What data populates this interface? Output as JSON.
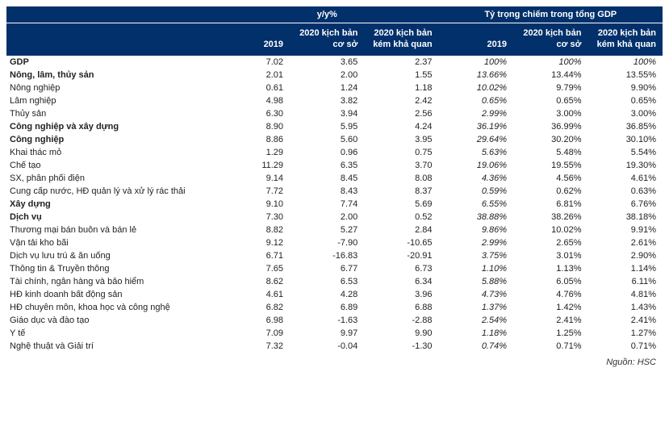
{
  "header": {
    "group_left": "y/y%",
    "group_right": "Tỷ trọng chiếm trong tổng GDP",
    "cols": [
      "2019",
      "2020 kịch bản cơ sở",
      "2020 kịch bản kém khả quan",
      "2019",
      "2020 kịch bản cơ sở",
      "2020 kịch bản kém khả quan"
    ]
  },
  "rows": [
    {
      "level": 0,
      "label": "GDP",
      "bold": true,
      "yoy": [
        "7.02",
        "3.65",
        "2.37"
      ],
      "share": [
        "100%",
        "100%",
        "100%"
      ],
      "share_italic": true
    },
    {
      "level": 1,
      "label": "Nông, lâm, thủy sản",
      "bold": true,
      "yoy": [
        "2.01",
        "2.00",
        "1.55"
      ],
      "share": [
        "13.66%",
        "13.44%",
        "13.55%"
      ],
      "first_share_italic": true
    },
    {
      "level": 2,
      "label": "Nông nghiệp",
      "yoy": [
        "0.61",
        "1.24",
        "1.18"
      ],
      "share": [
        "10.02%",
        "9.79%",
        "9.90%"
      ],
      "first_share_italic": true
    },
    {
      "level": 2,
      "label": "Lâm nghiệp",
      "yoy": [
        "4.98",
        "3.82",
        "2.42"
      ],
      "share": [
        "0.65%",
        "0.65%",
        "0.65%"
      ],
      "first_share_italic": true
    },
    {
      "level": 2,
      "label": "Thủy sản",
      "yoy": [
        "6.30",
        "3.94",
        "2.56"
      ],
      "share": [
        "2.99%",
        "3.00%",
        "3.00%"
      ],
      "first_share_italic": true
    },
    {
      "level": 1,
      "label": "Công nghiệp và xây dựng",
      "bold": true,
      "yoy": [
        "8.90",
        "5.95",
        "4.24"
      ],
      "share": [
        "36.19%",
        "36.99%",
        "36.85%"
      ],
      "first_share_italic": true
    },
    {
      "level": 1,
      "label": "Công nghiệp",
      "bold": true,
      "yoy": [
        "8.86",
        "5.60",
        "3.95"
      ],
      "share": [
        "29.64%",
        "30.20%",
        "30.10%"
      ],
      "first_share_italic": true
    },
    {
      "level": 2,
      "label": "Khai thác mỏ",
      "yoy": [
        "1.29",
        "0.96",
        "0.75"
      ],
      "share": [
        "5.63%",
        "5.48%",
        "5.54%"
      ],
      "first_share_italic": true
    },
    {
      "level": 2,
      "label": "Chế tạo",
      "yoy": [
        "11.29",
        "6.35",
        "3.70"
      ],
      "share": [
        "19.06%",
        "19.55%",
        "19.30%"
      ],
      "first_share_italic": true
    },
    {
      "level": 2,
      "label": "SX, phân phối điện",
      "yoy": [
        "9.14",
        "8.45",
        "8.08"
      ],
      "share": [
        "4.36%",
        "4.56%",
        "4.61%"
      ],
      "first_share_italic": true
    },
    {
      "level": 2,
      "label": "Cung cấp nước, HĐ quản lý và xử lý rác thải",
      "yoy": [
        "7.72",
        "8.43",
        "8.37"
      ],
      "share": [
        "0.59%",
        "0.62%",
        "0.63%"
      ],
      "first_share_italic": true
    },
    {
      "level": 1,
      "label": "Xây dựng",
      "bold": true,
      "yoy": [
        "9.10",
        "7.74",
        "5.69"
      ],
      "share": [
        "6.55%",
        "6.81%",
        "6.76%"
      ],
      "first_share_italic": true
    },
    {
      "level": 1,
      "label": "Dịch vụ",
      "bold": true,
      "yoy": [
        "7.30",
        "2.00",
        "0.52"
      ],
      "share": [
        "38.88%",
        "38.26%",
        "38.18%"
      ],
      "first_share_italic": true
    },
    {
      "level": 2,
      "label": "Thương mại bán buôn và bán lẻ",
      "yoy": [
        "8.82",
        "5.27",
        "2.84"
      ],
      "share": [
        "9.86%",
        "10.02%",
        "9.91%"
      ],
      "first_share_italic": true
    },
    {
      "level": 2,
      "label": "Vận tải kho bãi",
      "yoy": [
        "9.12",
        "-7.90",
        "-10.65"
      ],
      "share": [
        "2.99%",
        "2.65%",
        "2.61%"
      ],
      "first_share_italic": true
    },
    {
      "level": 2,
      "label": "Dịch vụ lưu trú & ăn uống",
      "yoy": [
        "6.71",
        "-16.83",
        "-20.91"
      ],
      "share": [
        "3.75%",
        "3.01%",
        "2.90%"
      ],
      "first_share_italic": true
    },
    {
      "level": 2,
      "label": "Thông tin & Truyền thông",
      "yoy": [
        "7.65",
        "6.77",
        "6.73"
      ],
      "share": [
        "1.10%",
        "1.13%",
        "1.14%"
      ],
      "first_share_italic": true
    },
    {
      "level": 2,
      "label": "Tài chính, ngân hàng và bảo hiểm",
      "yoy": [
        "8.62",
        "6.53",
        "6.34"
      ],
      "share": [
        "5.88%",
        "6.05%",
        "6.11%"
      ],
      "first_share_italic": true
    },
    {
      "level": 2,
      "label": "HĐ kinh doanh bất động sản",
      "yoy": [
        "4.61",
        "4.28",
        "3.96"
      ],
      "share": [
        "4.73%",
        "4.76%",
        "4.81%"
      ],
      "first_share_italic": true
    },
    {
      "level": 2,
      "label": "HĐ chuyên môn, khoa học và công nghệ",
      "yoy": [
        "6.82",
        "6.89",
        "6.88"
      ],
      "share": [
        "1.37%",
        "1.42%",
        "1.43%"
      ],
      "first_share_italic": true
    },
    {
      "level": 2,
      "label": "Giáo dục và đào tạo",
      "yoy": [
        "6.98",
        "-1.63",
        "-2.88"
      ],
      "share": [
        "2.54%",
        "2.41%",
        "2.41%"
      ],
      "first_share_italic": true
    },
    {
      "level": 2,
      "label": "Y tế",
      "yoy": [
        "7.09",
        "9.97",
        "9.90"
      ],
      "share": [
        "1.18%",
        "1.25%",
        "1.27%"
      ],
      "first_share_italic": true
    },
    {
      "level": 2,
      "label": "Nghệ thuật và Giải trí",
      "yoy": [
        "7.32",
        "-0.04",
        "-1.30"
      ],
      "share": [
        "0.74%",
        "0.71%",
        "0.71%"
      ],
      "first_share_italic": true
    }
  ],
  "source": "Nguồn: HSC"
}
